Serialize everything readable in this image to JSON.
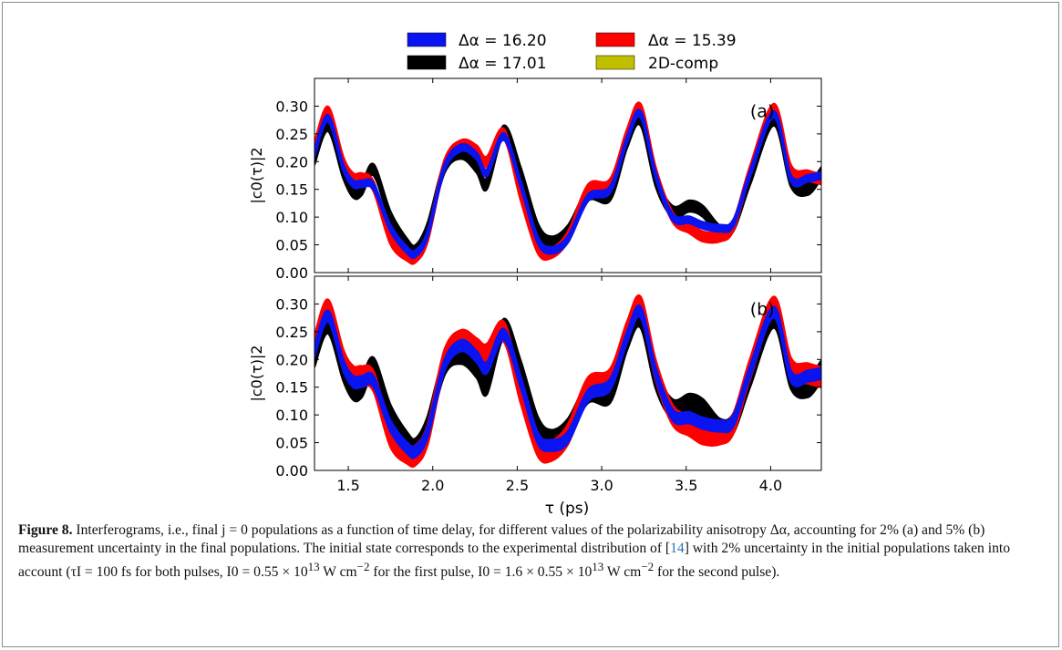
{
  "figure": {
    "legend": [
      {
        "label": "Δα = 16.20",
        "color": "#0a14f0"
      },
      {
        "label": "Δα = 15.39",
        "color": "#ff0000"
      },
      {
        "label": "Δα = 17.01",
        "color": "#000000"
      },
      {
        "label": "2D-comp",
        "color": "#bfbf00"
      }
    ],
    "xlabel": "τ (ps)",
    "ylabel": "|c0(τ)|2"
  },
  "caption": {
    "label": "Figure 8.",
    "text_1": " Interferograms, i.e., final j = 0 populations as a function of time delay, for different values of the polarizability anisotropy Δα, accounting for 2% (a) and 5% (b) measurement uncertainty in the final populations. The initial state corresponds to the experimental distribution of [",
    "ref": "14",
    "text_2": "] with 2% uncertainty in the initial populations taken into account (τI = 100 fs for both pulses, I0 = 0.55 × 10",
    "sup_1": "13",
    "text_3": " W cm",
    "sup_2": "−2",
    "text_4": " for the first pulse, I0 = 1.6 × 0.55 × 10",
    "sup_3": "13",
    "text_5": " W cm",
    "sup_4": "−2",
    "text_6": " for the second pulse)."
  },
  "chart_data": [
    {
      "type": "line",
      "panel_label": "(a)",
      "xlim": [
        1.3,
        4.3
      ],
      "ylim": [
        0.0,
        0.35
      ],
      "xticks": [
        1.5,
        2.0,
        2.5,
        3.0,
        3.5,
        4.0
      ],
      "yticks": [
        0.0,
        0.05,
        0.1,
        0.15,
        0.2,
        0.25,
        0.3
      ],
      "xlabel": "τ (ps)",
      "ylabel": "|c0(τ)|2",
      "x": [
        1.3,
        1.38,
        1.47,
        1.53,
        1.58,
        1.65,
        1.75,
        1.85,
        1.9,
        1.97,
        2.07,
        2.17,
        2.26,
        2.32,
        2.42,
        2.52,
        2.62,
        2.7,
        2.8,
        2.92,
        3.05,
        3.15,
        3.23,
        3.32,
        3.42,
        3.52,
        3.6,
        3.7,
        3.78,
        3.88,
        4.02,
        4.12,
        4.22,
        4.3
      ],
      "series": [
        {
          "name": "Δα = 16.20",
          "band": 0.006,
          "values": [
            0.215,
            0.278,
            0.19,
            0.16,
            0.16,
            0.155,
            0.08,
            0.04,
            0.035,
            0.07,
            0.19,
            0.225,
            0.21,
            0.18,
            0.245,
            0.16,
            0.06,
            0.04,
            0.06,
            0.135,
            0.15,
            0.24,
            0.285,
            0.175,
            0.1,
            0.095,
            0.085,
            0.08,
            0.09,
            0.18,
            0.285,
            0.17,
            0.17,
            0.175
          ]
        },
        {
          "name": "Δα = 15.39",
          "band": 0.009,
          "values": [
            0.225,
            0.29,
            0.2,
            0.17,
            0.17,
            0.155,
            0.06,
            0.03,
            0.028,
            0.065,
            0.195,
            0.23,
            0.22,
            0.2,
            0.25,
            0.14,
            0.045,
            0.035,
            0.065,
            0.15,
            0.16,
            0.25,
            0.295,
            0.18,
            0.1,
            0.08,
            0.065,
            0.065,
            0.085,
            0.185,
            0.295,
            0.185,
            0.175,
            0.168
          ]
        },
        {
          "name": "Δα = 17.01",
          "band": 0.01,
          "values": [
            0.205,
            0.265,
            0.18,
            0.145,
            0.15,
            0.185,
            0.1,
            0.05,
            0.04,
            0.08,
            0.19,
            0.215,
            0.19,
            0.16,
            0.255,
            0.18,
            0.08,
            0.055,
            0.075,
            0.14,
            0.14,
            0.235,
            0.275,
            0.165,
            0.11,
            0.12,
            0.11,
            0.075,
            0.085,
            0.17,
            0.275,
            0.165,
            0.15,
            0.18
          ]
        }
      ]
    },
    {
      "type": "line",
      "panel_label": "(b)",
      "xlim": [
        1.3,
        4.3
      ],
      "ylim": [
        0.0,
        0.35
      ],
      "xticks": [
        1.5,
        2.0,
        2.5,
        3.0,
        3.5,
        4.0
      ],
      "yticks": [
        0.0,
        0.05,
        0.1,
        0.15,
        0.2,
        0.25,
        0.3
      ],
      "xlabel": "τ (ps)",
      "ylabel": "|c0(τ)|2",
      "x": [
        1.3,
        1.38,
        1.47,
        1.53,
        1.58,
        1.65,
        1.75,
        1.85,
        1.9,
        1.97,
        2.07,
        2.17,
        2.26,
        2.32,
        2.42,
        2.52,
        2.62,
        2.7,
        2.8,
        2.92,
        3.05,
        3.15,
        3.23,
        3.32,
        3.42,
        3.52,
        3.6,
        3.7,
        3.78,
        3.88,
        4.02,
        4.12,
        4.22,
        4.3
      ],
      "series": [
        {
          "name": "Δα = 16.20",
          "band": 0.01,
          "values": [
            0.215,
            0.278,
            0.19,
            0.16,
            0.16,
            0.16,
            0.08,
            0.04,
            0.035,
            0.07,
            0.19,
            0.225,
            0.205,
            0.185,
            0.245,
            0.16,
            0.06,
            0.045,
            0.06,
            0.135,
            0.155,
            0.24,
            0.285,
            0.175,
            0.1,
            0.095,
            0.085,
            0.08,
            0.09,
            0.18,
            0.285,
            0.17,
            0.17,
            0.175
          ]
        },
        {
          "name": "Δα = 15.39",
          "band": 0.018,
          "values": [
            0.225,
            0.29,
            0.2,
            0.17,
            0.17,
            0.16,
            0.06,
            0.03,
            0.028,
            0.065,
            0.2,
            0.235,
            0.22,
            0.21,
            0.25,
            0.14,
            0.045,
            0.035,
            0.065,
            0.15,
            0.165,
            0.25,
            0.295,
            0.18,
            0.1,
            0.08,
            0.065,
            0.065,
            0.085,
            0.185,
            0.295,
            0.185,
            0.175,
            0.168
          ]
        },
        {
          "name": "Δα = 17.01",
          "band": 0.018,
          "values": [
            0.205,
            0.265,
            0.18,
            0.145,
            0.15,
            0.185,
            0.1,
            0.05,
            0.04,
            0.08,
            0.19,
            0.21,
            0.185,
            0.155,
            0.255,
            0.18,
            0.08,
            0.055,
            0.075,
            0.14,
            0.14,
            0.235,
            0.275,
            0.165,
            0.11,
            0.12,
            0.11,
            0.075,
            0.085,
            0.17,
            0.275,
            0.165,
            0.15,
            0.18
          ]
        }
      ]
    }
  ]
}
